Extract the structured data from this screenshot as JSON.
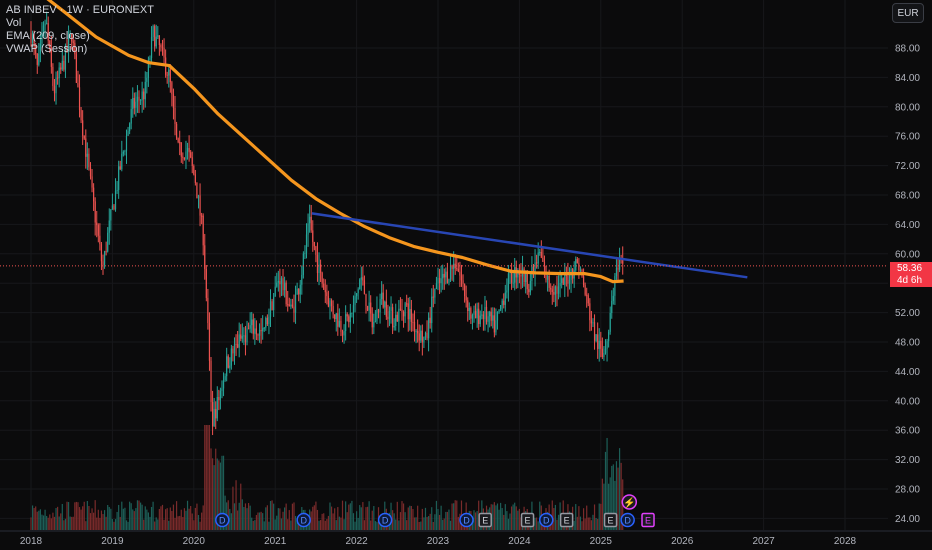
{
  "legend": {
    "symbol_line": "AB INBEV · 1W · EURONEXT",
    "vol": "Vol",
    "ema": "EMA (209, close)",
    "vwap": "VWAP (Session)"
  },
  "currency": "EUR",
  "last_price": {
    "value": "58.36",
    "countdown": "4d 6h",
    "color": "#f23645"
  },
  "colors": {
    "up": "#26a69a",
    "down": "#ef5350",
    "ema": "#f5961e",
    "trendline": "#2846b4",
    "background": "#0b0b0c",
    "axis_text": "#b2b5be"
  },
  "chart_data": {
    "type": "line",
    "y_axis_ticks": [
      "88.00",
      "84.00",
      "80.00",
      "76.00",
      "72.00",
      "68.00",
      "64.00",
      "60.00",
      "56.00",
      "52.00",
      "48.00",
      "44.00",
      "40.00",
      "36.00",
      "32.00",
      "28.00",
      "24.00"
    ],
    "x_axis_ticks": [
      "2018",
      "2019",
      "2020",
      "2021",
      "2022",
      "2023",
      "2024",
      "2025",
      "2026",
      "2027",
      "2028"
    ],
    "ylim": [
      23,
      92
    ],
    "xlim": [
      2017.9,
      2028.9
    ],
    "price_series": [
      {
        "x": 2018.0,
        "y": 90
      },
      {
        "x": 2018.08,
        "y": 85
      },
      {
        "x": 2018.18,
        "y": 92
      },
      {
        "x": 2018.28,
        "y": 82
      },
      {
        "x": 2018.4,
        "y": 86
      },
      {
        "x": 2018.5,
        "y": 90
      },
      {
        "x": 2018.6,
        "y": 80
      },
      {
        "x": 2018.75,
        "y": 68
      },
      {
        "x": 2018.88,
        "y": 58
      },
      {
        "x": 2018.95,
        "y": 63
      },
      {
        "x": 2019.1,
        "y": 72
      },
      {
        "x": 2019.25,
        "y": 80
      },
      {
        "x": 2019.4,
        "y": 82
      },
      {
        "x": 2019.5,
        "y": 90
      },
      {
        "x": 2019.58,
        "y": 88
      },
      {
        "x": 2019.7,
        "y": 84
      },
      {
        "x": 2019.8,
        "y": 74
      },
      {
        "x": 2019.92,
        "y": 74
      },
      {
        "x": 2020.02,
        "y": 70
      },
      {
        "x": 2020.12,
        "y": 62
      },
      {
        "x": 2020.18,
        "y": 48
      },
      {
        "x": 2020.22,
        "y": 37
      },
      {
        "x": 2020.3,
        "y": 40
      },
      {
        "x": 2020.4,
        "y": 45
      },
      {
        "x": 2020.55,
        "y": 48
      },
      {
        "x": 2020.7,
        "y": 50
      },
      {
        "x": 2020.85,
        "y": 49
      },
      {
        "x": 2020.95,
        "y": 53
      },
      {
        "x": 2021.05,
        "y": 57
      },
      {
        "x": 2021.2,
        "y": 52
      },
      {
        "x": 2021.3,
        "y": 56
      },
      {
        "x": 2021.42,
        "y": 64
      },
      {
        "x": 2021.55,
        "y": 57
      },
      {
        "x": 2021.68,
        "y": 53
      },
      {
        "x": 2021.82,
        "y": 50
      },
      {
        "x": 2021.95,
        "y": 52
      },
      {
        "x": 2022.05,
        "y": 57
      },
      {
        "x": 2022.2,
        "y": 50
      },
      {
        "x": 2022.3,
        "y": 54
      },
      {
        "x": 2022.45,
        "y": 51
      },
      {
        "x": 2022.6,
        "y": 53
      },
      {
        "x": 2022.72,
        "y": 50
      },
      {
        "x": 2022.85,
        "y": 48
      },
      {
        "x": 2022.95,
        "y": 55
      },
      {
        "x": 2023.1,
        "y": 57
      },
      {
        "x": 2023.22,
        "y": 59
      },
      {
        "x": 2023.32,
        "y": 55
      },
      {
        "x": 2023.42,
        "y": 51
      },
      {
        "x": 2023.55,
        "y": 52
      },
      {
        "x": 2023.7,
        "y": 50
      },
      {
        "x": 2023.85,
        "y": 56
      },
      {
        "x": 2023.98,
        "y": 58
      },
      {
        "x": 2024.12,
        "y": 56
      },
      {
        "x": 2024.25,
        "y": 60
      },
      {
        "x": 2024.35,
        "y": 56
      },
      {
        "x": 2024.48,
        "y": 55
      },
      {
        "x": 2024.6,
        "y": 57
      },
      {
        "x": 2024.72,
        "y": 59
      },
      {
        "x": 2024.82,
        "y": 54
      },
      {
        "x": 2024.92,
        "y": 49
      },
      {
        "x": 2025.02,
        "y": 46
      },
      {
        "x": 2025.1,
        "y": 50
      },
      {
        "x": 2025.16,
        "y": 56
      },
      {
        "x": 2025.22,
        "y": 58
      },
      {
        "x": 2025.28,
        "y": 58.36
      }
    ],
    "ema_series": [
      {
        "x": 2018.05,
        "y": 96
      },
      {
        "x": 2018.4,
        "y": 93
      },
      {
        "x": 2018.8,
        "y": 89.5
      },
      {
        "x": 2019.2,
        "y": 87
      },
      {
        "x": 2019.45,
        "y": 86
      },
      {
        "x": 2019.7,
        "y": 85.6
      },
      {
        "x": 2020.0,
        "y": 82.5
      },
      {
        "x": 2020.3,
        "y": 79
      },
      {
        "x": 2020.6,
        "y": 76
      },
      {
        "x": 2020.9,
        "y": 73
      },
      {
        "x": 2021.2,
        "y": 70
      },
      {
        "x": 2021.5,
        "y": 67.5
      },
      {
        "x": 2021.8,
        "y": 65.5
      },
      {
        "x": 2022.1,
        "y": 63.7
      },
      {
        "x": 2022.4,
        "y": 62.2
      },
      {
        "x": 2022.7,
        "y": 61
      },
      {
        "x": 2023.0,
        "y": 60.2
      },
      {
        "x": 2023.3,
        "y": 59.5
      },
      {
        "x": 2023.6,
        "y": 58.5
      },
      {
        "x": 2023.9,
        "y": 57.6
      },
      {
        "x": 2024.2,
        "y": 57.4
      },
      {
        "x": 2024.5,
        "y": 57.3
      },
      {
        "x": 2024.8,
        "y": 57.3
      },
      {
        "x": 2025.0,
        "y": 56.9
      },
      {
        "x": 2025.15,
        "y": 56.2
      },
      {
        "x": 2025.28,
        "y": 56.3
      }
    ],
    "trendline": {
      "x1": 2021.45,
      "y1": 65.5,
      "x2": 2026.8,
      "y2": 56.8
    },
    "volume_bars": {
      "note_values": "relative heights 0-1",
      "max_spike_x": 2020.17
    },
    "event_markers": [
      {
        "x": 2020.35,
        "label": "D",
        "kind": "dividend"
      },
      {
        "x": 2021.35,
        "label": "D",
        "kind": "dividend"
      },
      {
        "x": 2022.35,
        "label": "D",
        "kind": "dividend"
      },
      {
        "x": 2023.35,
        "label": "D",
        "kind": "dividend"
      },
      {
        "x": 2023.58,
        "label": "E",
        "kind": "earnings"
      },
      {
        "x": 2024.1,
        "label": "E",
        "kind": "earnings"
      },
      {
        "x": 2024.33,
        "label": "D",
        "kind": "dividend"
      },
      {
        "x": 2024.58,
        "label": "E",
        "kind": "earnings"
      },
      {
        "x": 2025.12,
        "label": "E",
        "kind": "earnings"
      },
      {
        "x": 2025.33,
        "label": "D",
        "kind": "dividend"
      },
      {
        "x": 2025.58,
        "label": "E",
        "kind": "earnings-upcoming"
      }
    ],
    "split_marker": {
      "x": 2025.35,
      "label": "⚡"
    }
  }
}
